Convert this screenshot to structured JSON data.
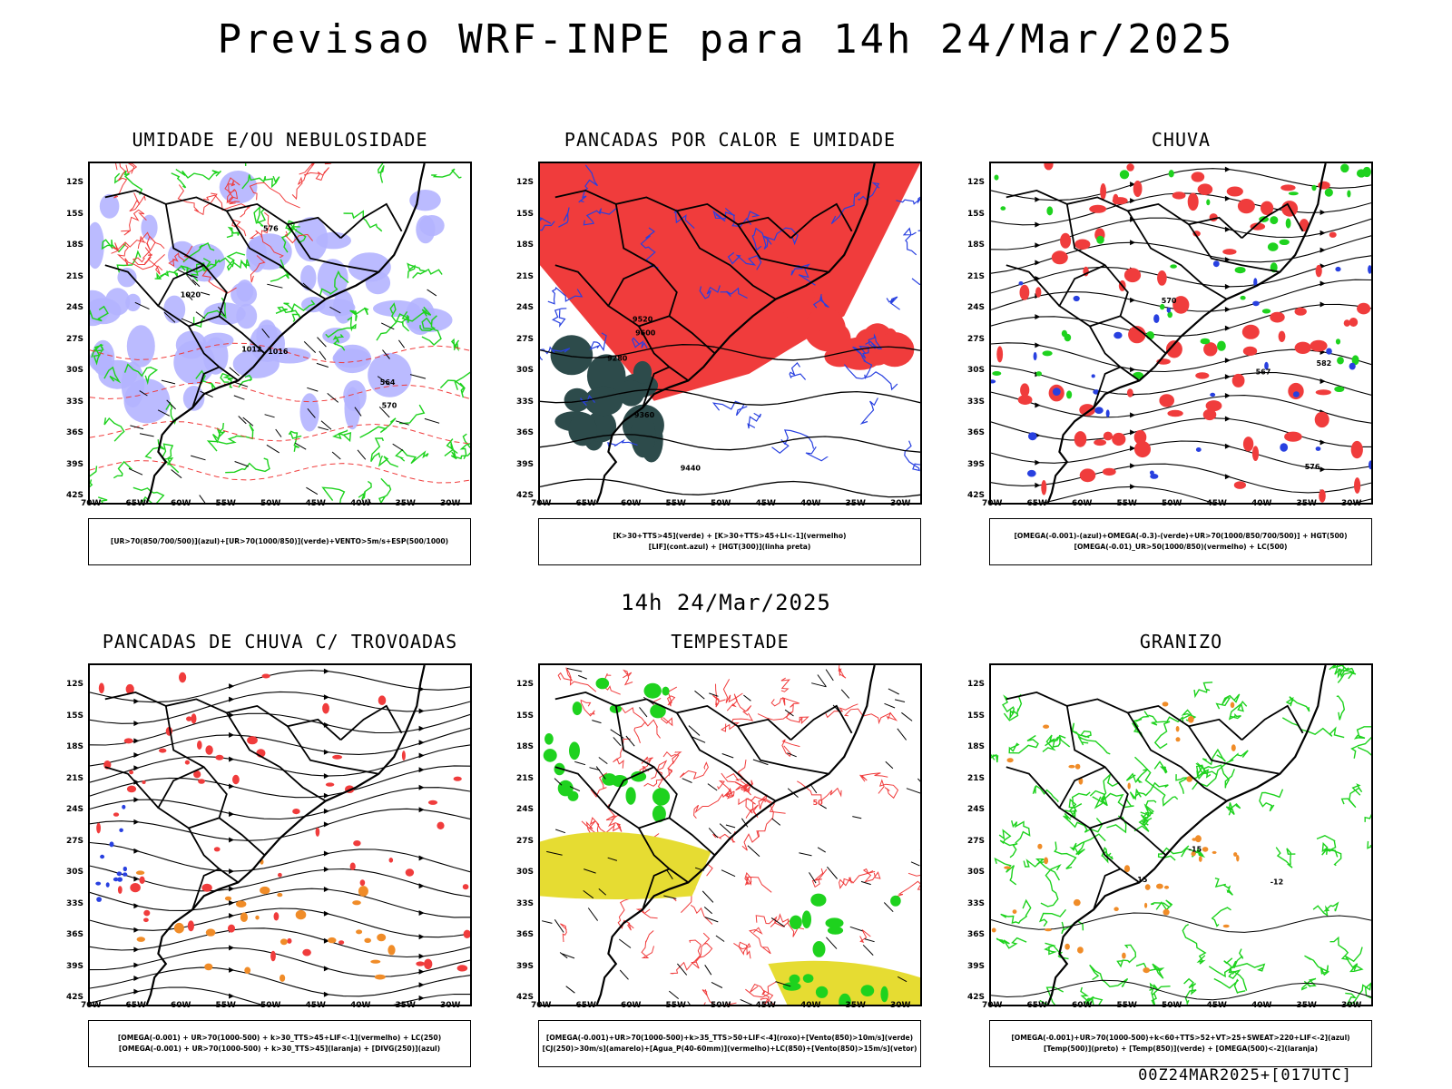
{
  "main_title": "Previsao WRF-INPE  para 14h 24/Mar/2025",
  "mid_title": "14h 24/Mar/2025",
  "footer": "00Z24MAR2025+[017UTC]",
  "lat_labels": [
    "12S",
    "15S",
    "18S",
    "21S",
    "24S",
    "27S",
    "30S",
    "33S",
    "36S",
    "39S",
    "42S"
  ],
  "lon_labels": [
    "70W",
    "65W",
    "60W",
    "55W",
    "50W",
    "45W",
    "40W",
    "35W",
    "30W"
  ],
  "colors": {
    "red": "#f03c3c",
    "green": "#1ed21e",
    "blue": "#2840e0",
    "lavender": "#b4b4ff",
    "yellow": "#e6dc32",
    "orange": "#f08c28",
    "darkteal": "#2d4b4b",
    "purple": "#a020f0"
  },
  "panels": [
    {
      "title": "UMIDADE E/OU NEBULOSIDADE",
      "legend": [
        "[UR>70(850/700/500)](azul)+[UR>70(1000/850)](verde)+VENTO>5m/s+ESP(500/1000)"
      ],
      "contour_labels": [
        "1012",
        "1016",
        "1020",
        "576",
        "570",
        "564"
      ]
    },
    {
      "title": "PANCADAS POR CALOR E UMIDADE",
      "legend": [
        "[K>30+TTS>45](verde) + [K>30+TTS>45+LI<-1](vermelho)",
        "[LIF](cont.azul) + [HGT(300)](linha preta)"
      ],
      "contour_labels": [
        "9600",
        "9520",
        "9440",
        "9360",
        "9280"
      ]
    },
    {
      "title": "CHUVA",
      "legend": [
        "[OMEGA(-0.001)-(azul)+OMEGA(-0.3)-(verde)+UR>70(1000/850/700/500)] + HGT(500)",
        "[OMEGA(-0.01)_UR>50(1000/850)(vermelho) + LC(500)"
      ],
      "contour_labels": [
        "582",
        "576",
        "570",
        "567"
      ]
    },
    {
      "title": "PANCADAS DE CHUVA C/ TROVOADAS",
      "legend": [
        "[OMEGA(-0.001) + UR>70(1000-500) + k>30_TTS>45+LIF<-1](vermelho) + LC(250)",
        "[OMEGA(-0.001) + UR>70(1000-500) + k>30_TTS>45](laranja) + [DIVG(250)](azul)"
      ],
      "contour_labels": []
    },
    {
      "title": "TEMPESTADE",
      "legend": [
        "[OMEGA(-0.001)+UR>70(1000-500)+k>35_TTS>50+LIF<-4](roxo)+[Vento(850)>10m/s](verde)",
        "[CJ(250)>30m/s](amarelo)+[Agua_P(40-60mm)](vermelho)+LC(850)+[Vento(850)>15m/s](vetor)"
      ],
      "contour_labels": [
        "50"
      ]
    },
    {
      "title": "GRANIZO",
      "legend": [
        "[OMEGA(-0.001)+UR>70(1000-500)+k<60+TTS>52+VT>25+SWEAT>220+LIF<-2](azul)",
        "[Temp(500)](preto) + [Temp(850)](verde) + [OMEGA(500)<-2](laranja)"
      ],
      "contour_labels": [
        "-12",
        "-15",
        "15"
      ]
    }
  ]
}
